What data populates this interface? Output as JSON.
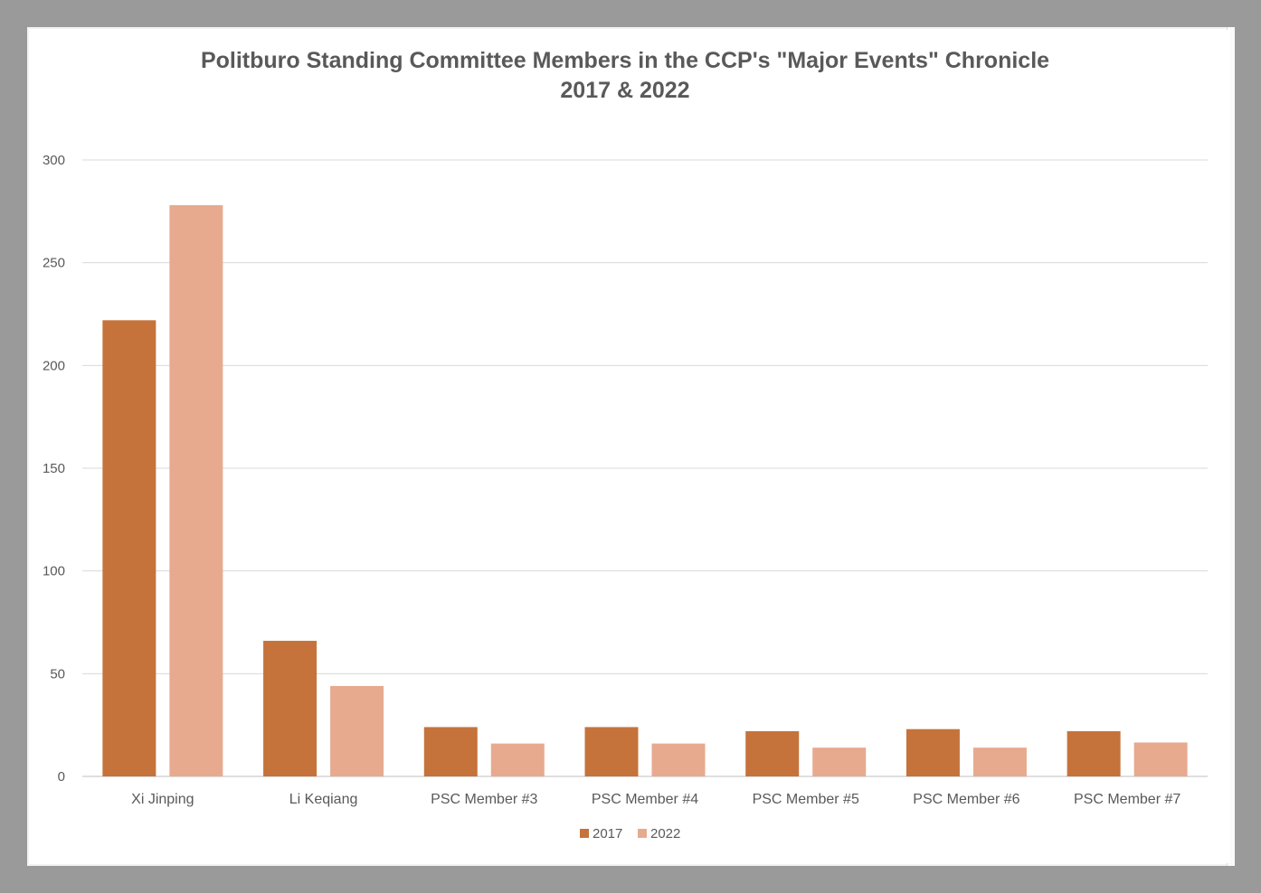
{
  "chart_data": {
    "type": "bar",
    "title": "Politburo Standing Committee Members in the CCP's \"Major Events\" Chronicle",
    "subtitle": "2017 & 2022",
    "xlabel": "",
    "ylabel": "",
    "ylim": [
      0,
      300
    ],
    "yticks": [
      0,
      50,
      100,
      150,
      200,
      250,
      300
    ],
    "grid": true,
    "legend_position": "bottom",
    "categories": [
      "Xi Jinping",
      "Li Keqiang",
      "PSC Member #3",
      "PSC Member #4",
      "PSC Member #5",
      "PSC Member #6",
      "PSC Member #7"
    ],
    "series": [
      {
        "name": "2017",
        "color": "#c5733b",
        "values": [
          222,
          66,
          24,
          24,
          22,
          23,
          22
        ]
      },
      {
        "name": "2022",
        "color": "#e7aa8f",
        "values": [
          278,
          44,
          16,
          16,
          14,
          14,
          16.5
        ]
      }
    ]
  }
}
